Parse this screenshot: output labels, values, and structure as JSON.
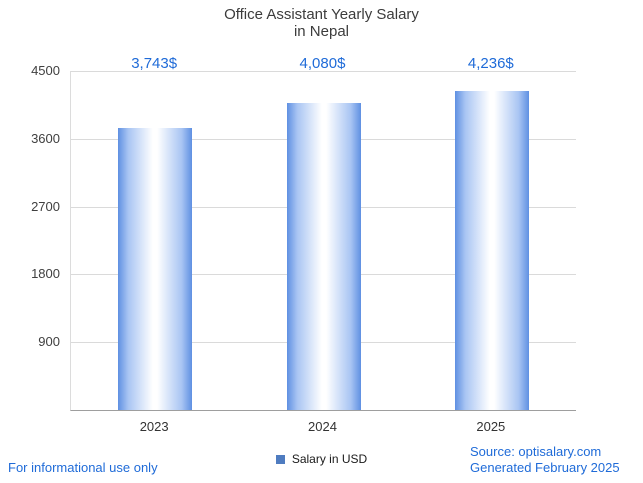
{
  "title": {
    "line1": "Office Assistant Yearly Salary",
    "line2": "in Nepal"
  },
  "chart_data": {
    "type": "bar",
    "title": "Office Assistant Yearly Salary in Nepal",
    "categories": [
      "2023",
      "2024",
      "2025"
    ],
    "values": [
      3743,
      4080,
      4236
    ],
    "value_labels": [
      "3,743$",
      "4,080$",
      "4,236$"
    ],
    "series": [
      {
        "name": "Salary in USD",
        "values": [
          3743,
          4080,
          4236
        ]
      }
    ],
    "xlabel": "",
    "ylabel": "",
    "ylim": [
      0,
      4500
    ],
    "yticks": [
      900,
      1800,
      2700,
      3600,
      4500
    ],
    "grid": true,
    "legend_position": "bottom"
  },
  "legend": {
    "label": "Salary in USD",
    "swatch_color": "#4f7cc0"
  },
  "footer": {
    "left": "For informational use only",
    "source": "Source: optisalary.com",
    "generated": "Generated February 2025"
  },
  "colors": {
    "accent_blue": "#1f6bd8",
    "bar_edge": "#5f90e2",
    "bar_mid": "#ffffff",
    "legend_swatch": "#4f7cc0",
    "grid": "#dadada",
    "axis": "#9e9e9e",
    "title_text": "#3c3c3c",
    "tick_text": "#3f3f3f"
  }
}
